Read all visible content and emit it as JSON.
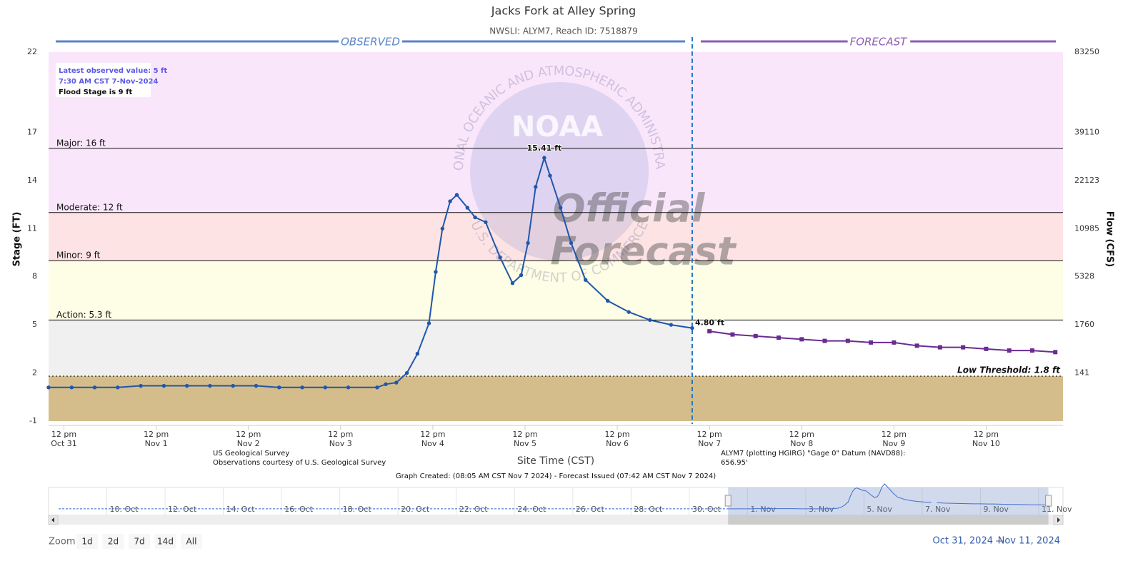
{
  "chart_data": {
    "type": "hydrograph",
    "title": "Jacks Fork at Alley Spring",
    "subtitle": "NWSLI: ALYM7, Reach ID: 7518879",
    "observed_header": "OBSERVED",
    "forecast_header": "FORECAST",
    "y_axis_label": "Stage (FT)",
    "y2_axis_label": "Flow (CFS)",
    "x_axis_label": "Site Time (CST)",
    "ylim": [
      -1,
      22
    ],
    "yticks": [
      22,
      17,
      14,
      11,
      8,
      5,
      2,
      -1
    ],
    "y2ticks": [
      83250,
      39110,
      22123,
      10985,
      5328,
      1760,
      141
    ],
    "xlim": [
      "2024-10-31T08:00",
      "2024-11-11T08:00"
    ],
    "xticks": [
      {
        "value": "2024-10-31T12:00",
        "label": [
          "12 pm",
          "Oct 31"
        ]
      },
      {
        "value": "2024-11-01T12:00",
        "label": [
          "12 pm",
          "Nov 1"
        ]
      },
      {
        "value": "2024-11-02T12:00",
        "label": [
          "12 pm",
          "Nov 2"
        ]
      },
      {
        "value": "2024-11-03T12:00",
        "label": [
          "12 pm",
          "Nov 3"
        ]
      },
      {
        "value": "2024-11-04T12:00",
        "label": [
          "12 pm",
          "Nov 4"
        ]
      },
      {
        "value": "2024-11-05T12:00",
        "label": [
          "12 pm",
          "Nov 5"
        ]
      },
      {
        "value": "2024-11-06T12:00",
        "label": [
          "12 pm",
          "Nov 6"
        ]
      },
      {
        "value": "2024-11-07T12:00",
        "label": [
          "12 pm",
          "Nov 7"
        ]
      },
      {
        "value": "2024-11-08T12:00",
        "label": [
          "12 pm",
          "Nov 8"
        ]
      },
      {
        "value": "2024-11-09T12:00",
        "label": [
          "12 pm",
          "Nov 9"
        ]
      },
      {
        "value": "2024-11-10T12:00",
        "label": [
          "12 pm",
          "Nov 10"
        ]
      }
    ],
    "thresholds": [
      {
        "label": "Major: 16 ft",
        "value": 16,
        "color": "#fae6fb"
      },
      {
        "label": "Moderate: 12 ft",
        "value": 12,
        "color": "#fde3e3"
      },
      {
        "label": "Minor: 9 ft",
        "value": 9,
        "color": "#fdf1e3"
      },
      {
        "label": "Action: 5.3 ft",
        "value": 5.3,
        "color": "#fefde5"
      }
    ],
    "top_color": "#fae6fb",
    "low_threshold": {
      "label": "Low Threshold: 1.8 ft",
      "value": 1.8,
      "color_above": "#f0f0f0",
      "color_below": "#d5bd8b"
    },
    "series": [
      {
        "name": "Observed",
        "color": "#1f57ab",
        "x": [
          "2024-10-31T08:00",
          "2024-10-31T14:00",
          "2024-10-31T20:00",
          "2024-11-01T02:00",
          "2024-11-01T08:00",
          "2024-11-01T14:00",
          "2024-11-01T20:00",
          "2024-11-02T02:00",
          "2024-11-02T08:00",
          "2024-11-02T14:00",
          "2024-11-02T20:00",
          "2024-11-03T02:00",
          "2024-11-03T08:00",
          "2024-11-03T14:00",
          "2024-11-03T21:30",
          "2024-11-03T23:45",
          "2024-11-04T02:30",
          "2024-11-04T05:15",
          "2024-11-04T08:00",
          "2024-11-04T11:00",
          "2024-11-04T12:45",
          "2024-11-04T14:30",
          "2024-11-04T16:30",
          "2024-11-04T18:15",
          "2024-11-04T21:00",
          "2024-11-04T23:00",
          "2024-11-05T01:45",
          "2024-11-05T05:30",
          "2024-11-05T08:45",
          "2024-11-05T11:00",
          "2024-11-05T12:45",
          "2024-11-05T14:45",
          "2024-11-05T17:00",
          "2024-11-05T18:30",
          "2024-11-05T21:15",
          "2024-11-06T00:00",
          "2024-11-06T03:45",
          "2024-11-06T09:30",
          "2024-11-06T15:00",
          "2024-11-06T20:30",
          "2024-11-07T02:00",
          "2024-11-07T07:30"
        ],
        "values": [
          1.1,
          1.1,
          1.1,
          1.1,
          1.2,
          1.2,
          1.2,
          1.2,
          1.2,
          1.2,
          1.1,
          1.1,
          1.1,
          1.1,
          1.1,
          1.3,
          1.4,
          2.0,
          3.2,
          5.1,
          8.3,
          11.0,
          12.7,
          13.1,
          12.3,
          11.7,
          11.4,
          9.2,
          7.6,
          8.1,
          10.1,
          13.6,
          15.41,
          14.3,
          12.3,
          10.1,
          7.8,
          6.5,
          5.8,
          5.3,
          5.0,
          4.8
        ],
        "value_labels": [
          null,
          null,
          null,
          null,
          null,
          null,
          null,
          null,
          null,
          null,
          null,
          null,
          null,
          null,
          null,
          null,
          null,
          null,
          null,
          null,
          null,
          null,
          null,
          null,
          null,
          null,
          null,
          null,
          null,
          null,
          null,
          null,
          "15.41 ft",
          null,
          null,
          null,
          null,
          null,
          null,
          null,
          null,
          "4.80 ft"
        ]
      },
      {
        "name": "Forecast",
        "color": "#6a2c91",
        "x": [
          "2024-11-07T12:00",
          "2024-11-07T18:00",
          "2024-11-08T00:00",
          "2024-11-08T06:00",
          "2024-11-08T12:00",
          "2024-11-08T18:00",
          "2024-11-09T00:00",
          "2024-11-09T06:00",
          "2024-11-09T12:00",
          "2024-11-09T18:00",
          "2024-11-10T00:00",
          "2024-11-10T06:00",
          "2024-11-10T12:00",
          "2024-11-10T18:00",
          "2024-11-11T00:00",
          "2024-11-11T06:00"
        ],
        "values": [
          4.6,
          4.4,
          4.3,
          4.2,
          4.1,
          4.0,
          4.0,
          3.9,
          3.9,
          3.7,
          3.6,
          3.6,
          3.5,
          3.4,
          3.4,
          3.3
        ]
      }
    ],
    "info_box": [
      "Latest observed value: 5 ft",
      "7:30 AM CST 7-Nov-2024",
      "Flood Stage is 9 ft"
    ],
    "source_lines": [
      "US Geological Survey",
      "Observations courtesy of U.S. Geological Survey"
    ],
    "datum_lines": [
      "ALYM7 (plotting HGIRG) \"Gage 0\" Datum (NAVD88):",
      "656.95'"
    ],
    "created_note": "Graph Created: (08:05 AM CST Nov 7 2024) - Forecast Issued (07:42 AM CST Nov 7 2024)",
    "watermark": {
      "logo": "NOAA",
      "ring_top": "NATIONAL OCEANIC AND ATMOSPHERIC ADMINISTRATION",
      "ring_bottom": "U.S. DEPARTMENT OF COMMERCE",
      "lines": [
        "Official",
        "Forecast"
      ]
    },
    "navigator": {
      "xlim": [
        "2024-10-08T00:00",
        "2024-11-11T20:00"
      ],
      "xticks": [
        {
          "value": "2024-10-10T00:00",
          "label": "10. Oct"
        },
        {
          "value": "2024-10-12T00:00",
          "label": "12. Oct"
        },
        {
          "value": "2024-10-14T00:00",
          "label": "14. Oct"
        },
        {
          "value": "2024-10-16T00:00",
          "label": "16. Oct"
        },
        {
          "value": "2024-10-18T00:00",
          "label": "18. Oct"
        },
        {
          "value": "2024-10-20T00:00",
          "label": "20. Oct"
        },
        {
          "value": "2024-10-22T00:00",
          "label": "22. Oct"
        },
        {
          "value": "2024-10-24T00:00",
          "label": "24. Oct"
        },
        {
          "value": "2024-10-26T00:00",
          "label": "26. Oct"
        },
        {
          "value": "2024-10-28T00:00",
          "label": "28. Oct"
        },
        {
          "value": "2024-10-30T00:00",
          "label": "30. Oct"
        },
        {
          "value": "2024-11-01T00:00",
          "label": "1. Nov"
        },
        {
          "value": "2024-11-03T00:00",
          "label": "3. Nov"
        },
        {
          "value": "2024-11-05T00:00",
          "label": "5. Nov"
        },
        {
          "value": "2024-11-07T00:00",
          "label": "7. Nov"
        },
        {
          "value": "2024-11-09T00:00",
          "label": "9. Nov"
        },
        {
          "value": "2024-11-11T00:00",
          "label": "11. Nov"
        }
      ]
    },
    "zoom_label": "Zoom",
    "zoom_buttons": [
      "1d",
      "2d",
      "7d",
      "14d",
      "All"
    ],
    "range_from": "Oct 31, 2024",
    "range_sep": "—",
    "range_to": "Nov 11, 2024"
  }
}
